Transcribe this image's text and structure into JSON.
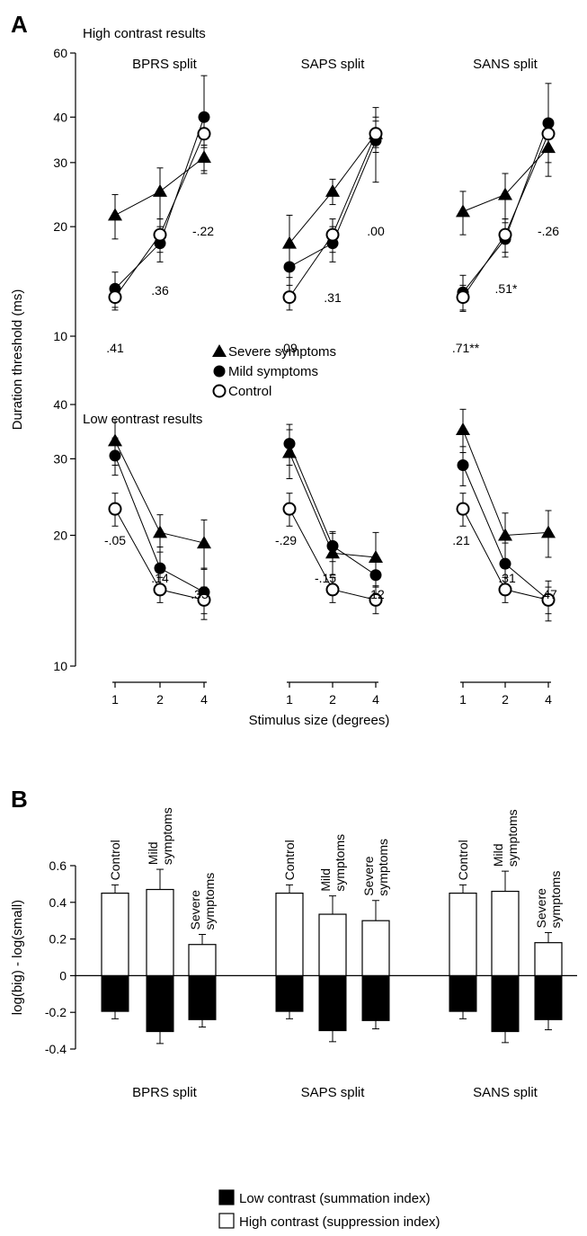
{
  "chart_data": [
    {
      "type": "line",
      "panel": "A",
      "ylabel": "Duration threshold (ms)",
      "xlabel": "Stimulus size (degrees)",
      "yscale": "log",
      "ylim": [
        10,
        60
      ],
      "y_ticks": [
        10,
        20,
        30,
        40,
        60
      ],
      "x_ticks": [
        1,
        2,
        4
      ],
      "legend": {
        "placement": "center",
        "entries": [
          {
            "label": "Severe symptoms",
            "marker": "triangle"
          },
          {
            "label": "Mild symptoms",
            "marker": "filled-circle"
          },
          {
            "label": "Control",
            "marker": "open-circle"
          }
        ]
      },
      "subplots": [
        {
          "title": "High contrast results",
          "ylim": [
            10,
            60
          ],
          "y_ticks": [
            10,
            20,
            30,
            40,
            60
          ],
          "groups": [
            {
              "title": "BPRS split",
              "x": [
                1,
                2,
                4
              ],
              "series": [
                {
                  "name": "Severe symptoms",
                  "marker": "triangle",
                  "values": [
                    21.5,
                    25,
                    31
                  ],
                  "errors": [
                    3,
                    4,
                    2.5
                  ]
                },
                {
                  "name": "Mild symptoms",
                  "marker": "filled-circle",
                  "values": [
                    13.5,
                    18,
                    40
                  ],
                  "errors": [
                    1.5,
                    2,
                    12
                  ]
                },
                {
                  "name": "Control",
                  "marker": "open-circle",
                  "values": [
                    12.8,
                    19,
                    36
                  ],
                  "errors": [
                    1,
                    2,
                    3
                  ]
                }
              ],
              "annotations": [
                ".41",
                ".36",
                "-.22"
              ]
            },
            {
              "title": "SAPS split",
              "x": [
                1,
                2,
                4
              ],
              "series": [
                {
                  "name": "Severe symptoms",
                  "marker": "triangle",
                  "values": [
                    18,
                    25,
                    36
                  ],
                  "errors": [
                    3.5,
                    2,
                    4
                  ]
                },
                {
                  "name": "Mild symptoms",
                  "marker": "filled-circle",
                  "values": [
                    15.5,
                    18,
                    34.5
                  ],
                  "errors": [
                    2.5,
                    2,
                    8
                  ]
                },
                {
                  "name": "Control",
                  "marker": "open-circle",
                  "values": [
                    12.8,
                    19,
                    36
                  ],
                  "errors": [
                    1,
                    2,
                    3
                  ]
                }
              ],
              "annotations": [
                ".09",
                ".31",
                ".00"
              ]
            },
            {
              "title": "SANS split",
              "x": [
                1,
                2,
                4
              ],
              "series": [
                {
                  "name": "Severe symptoms",
                  "marker": "triangle",
                  "values": [
                    22,
                    24.5,
                    33
                  ],
                  "errors": [
                    3,
                    3.5,
                    3
                  ]
                },
                {
                  "name": "Mild symptoms",
                  "marker": "filled-circle",
                  "values": [
                    13.2,
                    18.5,
                    38.5
                  ],
                  "errors": [
                    1.5,
                    2,
                    11
                  ]
                },
                {
                  "name": "Control",
                  "marker": "open-circle",
                  "values": [
                    12.8,
                    19,
                    36
                  ],
                  "errors": [
                    1,
                    2,
                    3
                  ]
                }
              ],
              "annotations": [
                ".71**",
                ".51*",
                "-.26"
              ]
            }
          ]
        },
        {
          "title": "Low contrast results",
          "ylim": [
            10,
            40
          ],
          "y_ticks": [
            10,
            20,
            30,
            40
          ],
          "groups": [
            {
              "title": "BPRS split",
              "x": [
                1,
                2,
                4
              ],
              "series": [
                {
                  "name": "Severe symptoms",
                  "marker": "triangle",
                  "values": [
                    33,
                    20.3,
                    19.2
                  ],
                  "errors": [
                    4,
                    2,
                    2.5
                  ]
                },
                {
                  "name": "Mild symptoms",
                  "marker": "filled-circle",
                  "values": [
                    30.5,
                    16.8,
                    14.8
                  ],
                  "errors": [
                    3,
                    2,
                    2
                  ]
                },
                {
                  "name": "Control",
                  "marker": "open-circle",
                  "values": [
                    23,
                    15,
                    14.2
                  ],
                  "errors": [
                    2,
                    1,
                    1
                  ]
                }
              ],
              "annotations": [
                "-.05",
                ".14",
                ".33"
              ]
            },
            {
              "title": "SAPS split",
              "x": [
                1,
                2,
                4
              ],
              "series": [
                {
                  "name": "Severe symptoms",
                  "marker": "triangle",
                  "values": [
                    31,
                    18.2,
                    17.8
                  ],
                  "errors": [
                    4,
                    2,
                    2.5
                  ]
                },
                {
                  "name": "Mild symptoms",
                  "marker": "filled-circle",
                  "values": [
                    32.5,
                    18.9,
                    16.2
                  ],
                  "errors": [
                    3.5,
                    1.5,
                    1.5
                  ]
                },
                {
                  "name": "Control",
                  "marker": "open-circle",
                  "values": [
                    23,
                    15,
                    14.2
                  ],
                  "errors": [
                    2,
                    1,
                    1
                  ]
                }
              ],
              "annotations": [
                "-.29",
                "-.15",
                ".12"
              ]
            },
            {
              "title": "SANS split",
              "x": [
                1,
                2,
                4
              ],
              "series": [
                {
                  "name": "Severe symptoms",
                  "marker": "triangle",
                  "values": [
                    35,
                    20,
                    20.3
                  ],
                  "errors": [
                    4,
                    2.5,
                    2.5
                  ]
                },
                {
                  "name": "Mild symptoms",
                  "marker": "filled-circle",
                  "values": [
                    29,
                    17.2,
                    14.2
                  ],
                  "errors": [
                    3,
                    2,
                    1.5
                  ]
                },
                {
                  "name": "Control",
                  "marker": "open-circle",
                  "values": [
                    23,
                    15,
                    14.2
                  ],
                  "errors": [
                    2,
                    1,
                    1
                  ]
                }
              ],
              "annotations": [
                ".21",
                ".31",
                ".47"
              ]
            }
          ]
        }
      ]
    },
    {
      "type": "bar",
      "panel": "B",
      "ylabel": "log(big) - log(small)",
      "ylim": [
        -0.4,
        0.6
      ],
      "y_ticks": [
        -0.4,
        -0.2,
        0,
        0.2,
        0.4,
        0.6
      ],
      "y_tick_labels": [
        "-0.4",
        "-0.2",
        "0",
        "0.2",
        "0.4",
        "0.6"
      ],
      "legend": {
        "placement": "bottom",
        "entries": [
          {
            "label": "Low contrast (summation index)",
            "fill": "#000000"
          },
          {
            "label": "High contrast (suppression index)",
            "fill": "#ffffff"
          }
        ]
      },
      "groups": [
        {
          "title": "BPRS split",
          "bars": [
            {
              "label": "Control",
              "high": 0.45,
              "high_err": 0.045,
              "low": -0.195,
              "low_err": 0.04
            },
            {
              "label": "Mild symptoms",
              "high": 0.47,
              "high_err": 0.11,
              "low": -0.305,
              "low_err": 0.065
            },
            {
              "label": "Severe symptoms",
              "high": 0.17,
              "high_err": 0.055,
              "low": -0.24,
              "low_err": 0.04
            }
          ]
        },
        {
          "title": "SAPS split",
          "bars": [
            {
              "label": "Control",
              "high": 0.45,
              "high_err": 0.045,
              "low": -0.195,
              "low_err": 0.04
            },
            {
              "label": "Mild symptoms",
              "high": 0.335,
              "high_err": 0.1,
              "low": -0.3,
              "low_err": 0.06
            },
            {
              "label": "Severe symptoms",
              "high": 0.3,
              "high_err": 0.11,
              "low": -0.245,
              "low_err": 0.045
            }
          ]
        },
        {
          "title": "SANS split",
          "bars": [
            {
              "label": "Control",
              "high": 0.45,
              "high_err": 0.045,
              "low": -0.195,
              "low_err": 0.04
            },
            {
              "label": "Mild symptoms",
              "high": 0.46,
              "high_err": 0.11,
              "low": -0.305,
              "low_err": 0.06
            },
            {
              "label": "Severe symptoms",
              "high": 0.18,
              "high_err": 0.055,
              "low": -0.24,
              "low_err": 0.055
            }
          ]
        }
      ]
    }
  ]
}
